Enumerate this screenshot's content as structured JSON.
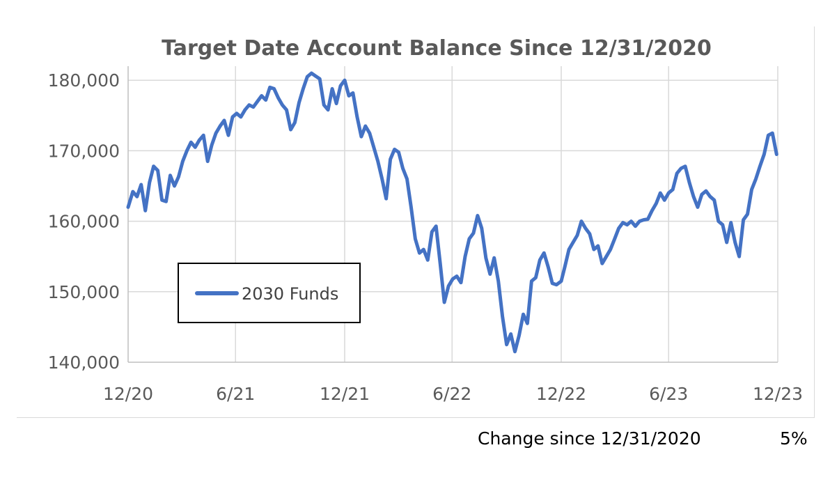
{
  "chart_data": {
    "type": "line",
    "title": "Target Date Account Balance Since 12/31/2020",
    "xlabel": "",
    "ylabel": "",
    "x_ticks": [
      "12/20",
      "6/21",
      "12/21",
      "6/22",
      "12/22",
      "6/23",
      "12/23"
    ],
    "y_ticks": [
      "140,000",
      "150,000",
      "160,000",
      "170,000",
      "180,000"
    ],
    "xlim": [
      "2020-12-31",
      "2023-12-31"
    ],
    "ylim": [
      140000,
      182000
    ],
    "grid": "vertical-and-horizontal",
    "legend_position": "center-left",
    "series": [
      {
        "name": "2030 Funds",
        "color": "#4472c4",
        "points": [
          [
            "2020-12-31",
            162000
          ],
          [
            "2021-01-08",
            164200
          ],
          [
            "2021-01-15",
            163500
          ],
          [
            "2021-01-22",
            165200
          ],
          [
            "2021-01-29",
            161500
          ],
          [
            "2021-02-05",
            165500
          ],
          [
            "2021-02-12",
            167800
          ],
          [
            "2021-02-19",
            167200
          ],
          [
            "2021-02-26",
            163000
          ],
          [
            "2021-03-05",
            162800
          ],
          [
            "2021-03-12",
            166500
          ],
          [
            "2021-03-19",
            165000
          ],
          [
            "2021-03-26",
            166300
          ],
          [
            "2021-04-02",
            168500
          ],
          [
            "2021-04-09",
            170000
          ],
          [
            "2021-04-16",
            171200
          ],
          [
            "2021-04-23",
            170500
          ],
          [
            "2021-04-30",
            171500
          ],
          [
            "2021-05-07",
            172200
          ],
          [
            "2021-05-14",
            168500
          ],
          [
            "2021-05-21",
            170800
          ],
          [
            "2021-05-28",
            172500
          ],
          [
            "2021-06-04",
            173500
          ],
          [
            "2021-06-11",
            174300
          ],
          [
            "2021-06-18",
            172200
          ],
          [
            "2021-06-25",
            174800
          ],
          [
            "2021-07-02",
            175300
          ],
          [
            "2021-07-09",
            174800
          ],
          [
            "2021-07-16",
            175800
          ],
          [
            "2021-07-23",
            176500
          ],
          [
            "2021-07-30",
            176200
          ],
          [
            "2021-08-06",
            177000
          ],
          [
            "2021-08-13",
            177800
          ],
          [
            "2021-08-20",
            177200
          ],
          [
            "2021-08-27",
            179000
          ],
          [
            "2021-09-03",
            178800
          ],
          [
            "2021-09-10",
            177500
          ],
          [
            "2021-09-17",
            176500
          ],
          [
            "2021-09-24",
            175800
          ],
          [
            "2021-10-01",
            173000
          ],
          [
            "2021-10-08",
            174000
          ],
          [
            "2021-10-15",
            176800
          ],
          [
            "2021-10-22",
            178800
          ],
          [
            "2021-10-29",
            180500
          ],
          [
            "2021-11-05",
            181000
          ],
          [
            "2021-11-12",
            180600
          ],
          [
            "2021-11-19",
            180200
          ],
          [
            "2021-11-26",
            176500
          ],
          [
            "2021-12-03",
            175800
          ],
          [
            "2021-12-10",
            178800
          ],
          [
            "2021-12-17",
            176700
          ],
          [
            "2021-12-24",
            179200
          ],
          [
            "2021-12-31",
            180000
          ],
          [
            "2022-01-07",
            177800
          ],
          [
            "2022-01-14",
            178200
          ],
          [
            "2022-01-21",
            174800
          ],
          [
            "2022-01-28",
            172000
          ],
          [
            "2022-02-04",
            173500
          ],
          [
            "2022-02-11",
            172500
          ],
          [
            "2022-02-18",
            170500
          ],
          [
            "2022-02-25",
            168500
          ],
          [
            "2022-03-04",
            166000
          ],
          [
            "2022-03-11",
            163200
          ],
          [
            "2022-03-18",
            168800
          ],
          [
            "2022-03-25",
            170200
          ],
          [
            "2022-04-01",
            169800
          ],
          [
            "2022-04-08",
            167500
          ],
          [
            "2022-04-15",
            166000
          ],
          [
            "2022-04-22",
            162000
          ],
          [
            "2022-04-29",
            157500
          ],
          [
            "2022-05-06",
            155500
          ],
          [
            "2022-05-13",
            156000
          ],
          [
            "2022-05-20",
            154500
          ],
          [
            "2022-05-27",
            158500
          ],
          [
            "2022-06-03",
            159300
          ],
          [
            "2022-06-10",
            154000
          ],
          [
            "2022-06-17",
            148500
          ],
          [
            "2022-06-24",
            150800
          ],
          [
            "2022-07-01",
            151800
          ],
          [
            "2022-07-08",
            152200
          ],
          [
            "2022-07-15",
            151300
          ],
          [
            "2022-07-22",
            155000
          ],
          [
            "2022-07-29",
            157500
          ],
          [
            "2022-08-05",
            158300
          ],
          [
            "2022-08-12",
            160800
          ],
          [
            "2022-08-19",
            159000
          ],
          [
            "2022-08-26",
            154800
          ],
          [
            "2022-09-02",
            152500
          ],
          [
            "2022-09-09",
            154800
          ],
          [
            "2022-09-16",
            151500
          ],
          [
            "2022-09-23",
            146500
          ],
          [
            "2022-09-30",
            142500
          ],
          [
            "2022-10-07",
            144000
          ],
          [
            "2022-10-14",
            141500
          ],
          [
            "2022-10-21",
            143800
          ],
          [
            "2022-10-28",
            146800
          ],
          [
            "2022-11-04",
            145500
          ],
          [
            "2022-11-11",
            151500
          ],
          [
            "2022-11-18",
            152000
          ],
          [
            "2022-11-25",
            154500
          ],
          [
            "2022-12-02",
            155500
          ],
          [
            "2022-12-09",
            153500
          ],
          [
            "2022-12-16",
            151200
          ],
          [
            "2022-12-23",
            151000
          ],
          [
            "2022-12-31",
            151500
          ],
          [
            "2023-01-06",
            153500
          ],
          [
            "2023-01-13",
            156000
          ],
          [
            "2023-01-20",
            157000
          ],
          [
            "2023-01-27",
            158000
          ],
          [
            "2023-02-03",
            160000
          ],
          [
            "2023-02-10",
            159000
          ],
          [
            "2023-02-17",
            158200
          ],
          [
            "2023-02-24",
            156000
          ],
          [
            "2023-03-03",
            156500
          ],
          [
            "2023-03-10",
            154000
          ],
          [
            "2023-03-17",
            155000
          ],
          [
            "2023-03-24",
            156000
          ],
          [
            "2023-03-31",
            157500
          ],
          [
            "2023-04-07",
            159000
          ],
          [
            "2023-04-14",
            159800
          ],
          [
            "2023-04-21",
            159500
          ],
          [
            "2023-04-28",
            160000
          ],
          [
            "2023-05-05",
            159300
          ],
          [
            "2023-05-12",
            160000
          ],
          [
            "2023-05-19",
            160200
          ],
          [
            "2023-05-26",
            160300
          ],
          [
            "2023-06-02",
            161500
          ],
          [
            "2023-06-09",
            162500
          ],
          [
            "2023-06-16",
            164000
          ],
          [
            "2023-06-23",
            163000
          ],
          [
            "2023-06-30",
            164000
          ],
          [
            "2023-07-07",
            164500
          ],
          [
            "2023-07-14",
            166800
          ],
          [
            "2023-07-21",
            167500
          ],
          [
            "2023-07-28",
            167800
          ],
          [
            "2023-08-04",
            165500
          ],
          [
            "2023-08-11",
            163500
          ],
          [
            "2023-08-18",
            162000
          ],
          [
            "2023-08-25",
            163800
          ],
          [
            "2023-09-01",
            164300
          ],
          [
            "2023-09-08",
            163500
          ],
          [
            "2023-09-15",
            163000
          ],
          [
            "2023-09-22",
            160000
          ],
          [
            "2023-09-29",
            159500
          ],
          [
            "2023-10-06",
            157000
          ],
          [
            "2023-10-13",
            159800
          ],
          [
            "2023-10-20",
            157000
          ],
          [
            "2023-10-27",
            155000
          ],
          [
            "2023-11-03",
            160200
          ],
          [
            "2023-11-10",
            161000
          ],
          [
            "2023-11-17",
            164500
          ],
          [
            "2023-11-24",
            166000
          ],
          [
            "2023-12-01",
            167800
          ],
          [
            "2023-12-08",
            169500
          ],
          [
            "2023-12-15",
            172200
          ],
          [
            "2023-12-22",
            172500
          ],
          [
            "2023-12-29",
            169500
          ]
        ]
      }
    ]
  },
  "footer": {
    "label": "Change since 12/31/2020",
    "value": "5%"
  }
}
